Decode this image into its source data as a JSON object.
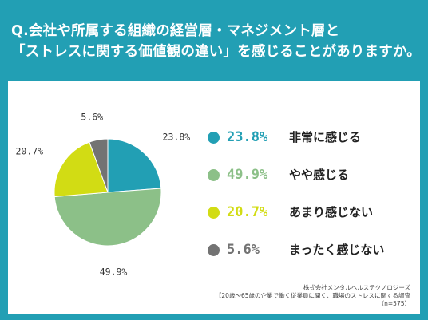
{
  "title": {
    "line1": "Q.会社や所属する組織の経営層・マネジメント層と",
    "line2": "「ストレスに関する価値観の違い」を感じることがありますか。"
  },
  "chart_data": {
    "type": "pie",
    "title": "",
    "categories": [
      "非常に感じる",
      "やや感じる",
      "あまり感じない",
      "まったく感じない"
    ],
    "values": [
      23.8,
      49.9,
      20.7,
      5.6
    ],
    "value_labels": [
      "23.8%",
      "49.9%",
      "20.7%",
      "5.6%"
    ],
    "pie_labels": [
      "23.8%",
      "49.9%",
      "20.7%",
      "5.6%"
    ],
    "colors": [
      "#229fb4",
      "#8cc088",
      "#d2dc14",
      "#737373"
    ],
    "start_angle": "12 o'clock",
    "direction": "clockwise",
    "legend_position": "right"
  },
  "source": {
    "line1": "株式会社メンタルヘルステクノロジーズ",
    "line2": "【20歳～65歳の企業で働く従業員に聞く、職場のストレスに関する調査",
    "line3": "（n=575）"
  }
}
